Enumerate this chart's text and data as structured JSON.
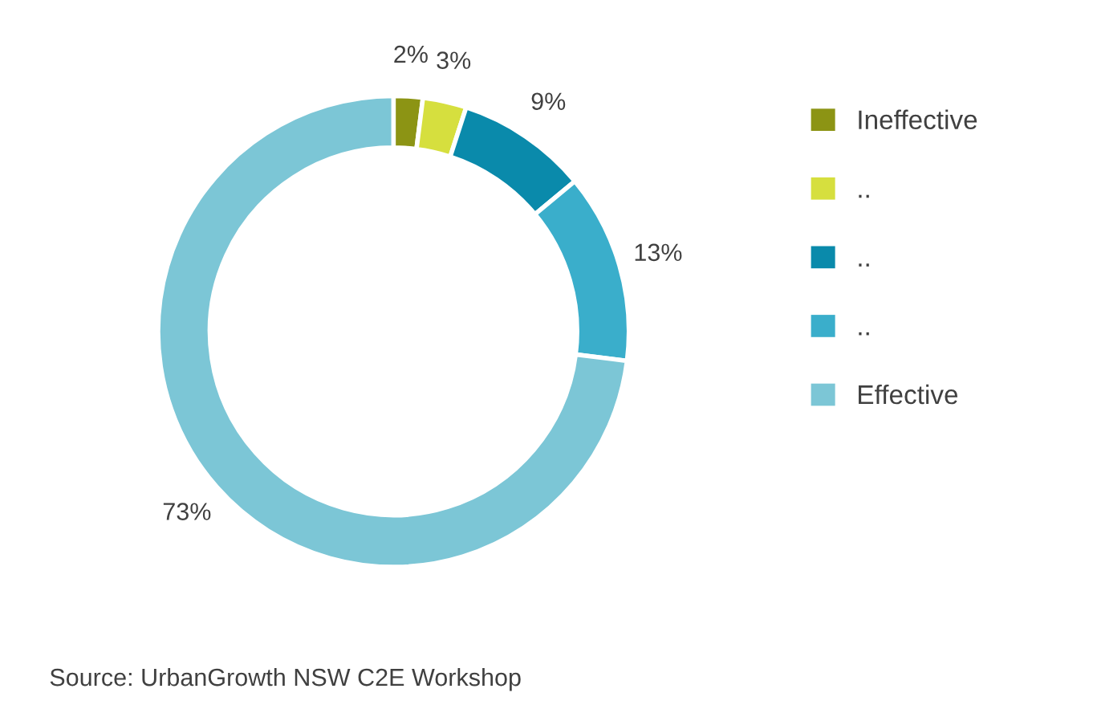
{
  "chart_data": {
    "type": "donut",
    "categories": [
      "Ineffective",
      "..",
      "..",
      "..",
      "Effective"
    ],
    "values": [
      2,
      3,
      9,
      13,
      73
    ],
    "colors": [
      "#8c9414",
      "#d6df3e",
      "#0a8aab",
      "#3aaecb",
      "#7cc6d6"
    ],
    "value_labels": [
      "2%",
      "3%",
      "9%",
      "13%",
      "73%"
    ],
    "legend": "right",
    "annotations": [
      "Source: UrbanGrowth NSW C2E Workshop"
    ]
  }
}
